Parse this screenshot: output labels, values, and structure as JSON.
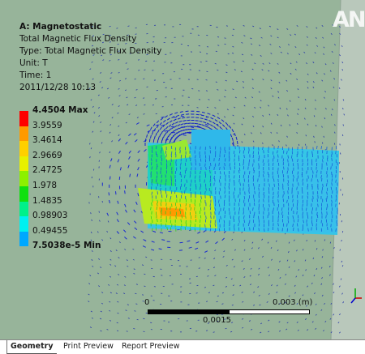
{
  "window": {
    "logo_text": "AN"
  },
  "result_info": {
    "title": "A: Magnetostatic",
    "lines": [
      "Total Magnetic Flux Density",
      "Type: Total Magnetic Flux Density",
      "Unit: T",
      "Time: 1",
      "2011/12/28 10:13"
    ]
  },
  "legend": {
    "entries": [
      {
        "label": "4.4504 Max",
        "color": "#ff0000",
        "bold": true
      },
      {
        "label": "3.9559",
        "color": "#ff9a00",
        "bold": false
      },
      {
        "label": "3.4614",
        "color": "#ffd000",
        "bold": false
      },
      {
        "label": "2.9669",
        "color": "#e8f000",
        "bold": false
      },
      {
        "label": "2.4725",
        "color": "#8cf000",
        "bold": false
      },
      {
        "label": "1.978",
        "color": "#10e010",
        "bold": false
      },
      {
        "label": "1.4835",
        "color": "#00f08a",
        "bold": false
      },
      {
        "label": "0.98903",
        "color": "#00f0f0",
        "bold": false
      },
      {
        "label": "0.49455",
        "color": "#00a8ff",
        "bold": false
      },
      {
        "label": "7.5038e-5 Min",
        "color": "#0000c8",
        "bold": true
      }
    ]
  },
  "scale_bar": {
    "start_label": "0",
    "end_label": "0.003 (m)",
    "mid_label": "0.0015"
  },
  "tabs": [
    {
      "label": "Geometry",
      "active": true
    },
    {
      "label": "Print Preview",
      "active": false
    },
    {
      "label": "Report Preview",
      "active": false
    }
  ]
}
